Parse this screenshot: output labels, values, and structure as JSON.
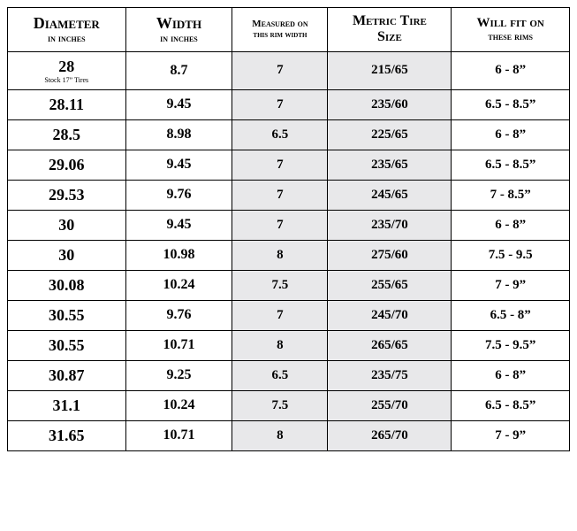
{
  "table": {
    "background_shaded": "#e8e8ea",
    "background_plain": "#ffffff",
    "border_color": "#000000",
    "columns": [
      {
        "head_main": "Diameter",
        "head_sub": "in inches",
        "head_main_fontsize": 18,
        "head_sub_fontsize": 12,
        "body_fontsize": 18,
        "shaded": false,
        "width_pct": 21
      },
      {
        "head_main": "Width",
        "head_sub": "in inches",
        "head_main_fontsize": 18,
        "head_sub_fontsize": 12,
        "body_fontsize": 16,
        "shaded": false,
        "width_pct": 19
      },
      {
        "head_main": "Measured on",
        "head_sub": "this rim width",
        "head_main_fontsize": 11,
        "head_sub_fontsize": 10,
        "body_fontsize": 15,
        "shaded": true,
        "width_pct": 17
      },
      {
        "head_main": "Metric Tire",
        "head_sub": "Size",
        "head_main_fontsize": 16,
        "head_sub_fontsize": 16,
        "body_fontsize": 15,
        "shaded": true,
        "width_pct": 22
      },
      {
        "head_main": "Will fit on",
        "head_sub": "these rims",
        "head_main_fontsize": 15,
        "head_sub_fontsize": 12,
        "body_fontsize": 15,
        "shaded": false,
        "width_pct": 21
      }
    ],
    "rows": [
      {
        "cells": [
          "28",
          "8.7",
          "7",
          "215/65",
          "6 - 8”"
        ],
        "subnote": "Stock 17” Tires"
      },
      {
        "cells": [
          "28.11",
          "9.45",
          "7",
          "235/60",
          "6.5 - 8.5”"
        ]
      },
      {
        "cells": [
          "28.5",
          "8.98",
          "6.5",
          "225/65",
          "6 - 8”"
        ]
      },
      {
        "cells": [
          "29.06",
          "9.45",
          "7",
          "235/65",
          "6.5 - 8.5”"
        ]
      },
      {
        "cells": [
          "29.53",
          "9.76",
          "7",
          "245/65",
          "7 - 8.5”"
        ]
      },
      {
        "cells": [
          "30",
          "9.45",
          "7",
          "235/70",
          "6 - 8”"
        ]
      },
      {
        "cells": [
          "30",
          "10.98",
          "8",
          "275/60",
          "7.5 - 9.5"
        ]
      },
      {
        "cells": [
          "30.08",
          "10.24",
          "7.5",
          "255/65",
          "7 - 9”"
        ]
      },
      {
        "cells": [
          "30.55",
          "9.76",
          "7",
          "245/70",
          "6.5 - 8”"
        ]
      },
      {
        "cells": [
          "30.55",
          "10.71",
          "8",
          "265/65",
          "7.5 - 9.5”"
        ]
      },
      {
        "cells": [
          "30.87",
          "9.25",
          "6.5",
          "235/75",
          "6 - 8”"
        ]
      },
      {
        "cells": [
          "31.1",
          "10.24",
          "7.5",
          "255/70",
          "6.5 - 8.5”"
        ]
      },
      {
        "cells": [
          "31.65",
          "10.71",
          "8",
          "265/70",
          "7 - 9”"
        ]
      }
    ]
  }
}
